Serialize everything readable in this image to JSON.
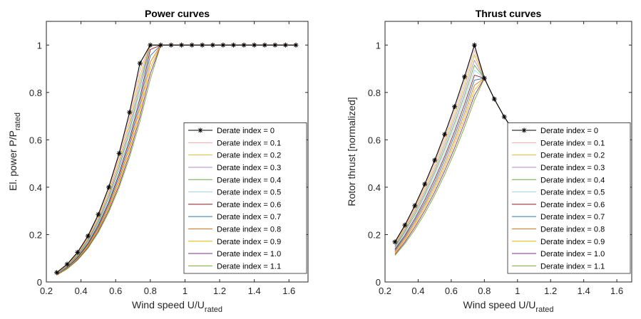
{
  "chart_data": [
    {
      "type": "line",
      "title": "Power curves",
      "xlabel": "Wind speed U/U",
      "xlabel_sub": "rated",
      "ylabel": "El. power P/P",
      "ylabel_sub": "rated",
      "x": [
        0.26,
        0.32,
        0.38,
        0.44,
        0.5,
        0.56,
        0.62,
        0.68,
        0.74,
        0.8,
        0.86,
        0.92,
        0.98,
        1.04,
        1.1,
        1.16,
        1.22,
        1.28,
        1.34,
        1.4,
        1.46,
        1.52,
        1.58,
        1.64
      ],
      "xlim": [
        0.2,
        1.71
      ],
      "ylim": [
        0,
        1.1
      ],
      "xticks": [
        0.2,
        0.4,
        0.6,
        0.8,
        1,
        1.2,
        1.4,
        1.6
      ],
      "yticks": [
        0,
        0.2,
        0.4,
        0.6,
        0.8,
        1
      ],
      "legend": "lower right",
      "series": [
        {
          "name": "Derate index = 0",
          "color": "#000000",
          "marker": "*",
          "values": [
            0.04,
            0.075,
            0.125,
            0.194,
            0.285,
            0.4,
            0.543,
            0.716,
            0.923,
            1,
            1,
            1,
            1,
            1,
            1,
            1,
            1,
            1,
            1,
            1,
            1,
            1,
            1,
            1
          ]
        },
        {
          "name": "Derate index = 0.1",
          "color": "#f4a6a6",
          "values": [
            0.039,
            0.073,
            0.121,
            0.188,
            0.277,
            0.388,
            0.527,
            0.695,
            0.896,
            1,
            1,
            1,
            1,
            1,
            1,
            1,
            1,
            1,
            1,
            1,
            1,
            1,
            1,
            1
          ]
        },
        {
          "name": "Derate index = 0.2",
          "color": "#d4c02c",
          "values": [
            0.038,
            0.071,
            0.118,
            0.183,
            0.269,
            0.377,
            0.512,
            0.675,
            0.87,
            1,
            1,
            1,
            1,
            1,
            1,
            1,
            1,
            1,
            1,
            1,
            1,
            1,
            1,
            1
          ]
        },
        {
          "name": "Derate index = 0.3",
          "color": "#b48ac8",
          "values": [
            0.037,
            0.069,
            0.115,
            0.178,
            0.261,
            0.366,
            0.497,
            0.656,
            0.845,
            1,
            1,
            1,
            1,
            1,
            1,
            1,
            1,
            1,
            1,
            1,
            1,
            1,
            1,
            1
          ]
        },
        {
          "name": "Derate index = 0.4",
          "color": "#6aa84f",
          "values": [
            0.036,
            0.067,
            0.111,
            0.173,
            0.254,
            0.356,
            0.483,
            0.637,
            0.821,
            1,
            1,
            1,
            1,
            1,
            1,
            1,
            1,
            1,
            1,
            1,
            1,
            1,
            1,
            1
          ]
        },
        {
          "name": "Derate index = 0.5",
          "color": "#9fd8ef",
          "values": [
            0.035,
            0.065,
            0.108,
            0.168,
            0.247,
            0.346,
            0.47,
            0.62,
            0.799,
            1,
            1,
            1,
            1,
            1,
            1,
            1,
            1,
            1,
            1,
            1,
            1,
            1,
            1,
            1
          ]
        },
        {
          "name": "Derate index = 0.6",
          "color": "#8b1a1a",
          "values": [
            0.034,
            0.063,
            0.105,
            0.163,
            0.24,
            0.336,
            0.457,
            0.602,
            0.776,
            0.981,
            1,
            1,
            1,
            1,
            1,
            1,
            1,
            1,
            1,
            1,
            1,
            1,
            1,
            1
          ]
        },
        {
          "name": "Derate index = 0.7",
          "color": "#2e75b6",
          "values": [
            0.033,
            0.061,
            0.102,
            0.159,
            0.233,
            0.328,
            0.445,
            0.586,
            0.756,
            0.955,
            1,
            1,
            1,
            1,
            1,
            1,
            1,
            1,
            1,
            1,
            1,
            1,
            1,
            1
          ]
        },
        {
          "name": "Derate index = 0.8",
          "color": "#e8731c",
          "values": [
            0.032,
            0.06,
            0.1,
            0.154,
            0.227,
            0.318,
            0.432,
            0.57,
            0.735,
            0.928,
            1,
            1,
            1,
            1,
            1,
            1,
            1,
            1,
            1,
            1,
            1,
            1,
            1,
            1
          ]
        },
        {
          "name": "Derate index = 0.9",
          "color": "#e6b800",
          "values": [
            0.031,
            0.058,
            0.097,
            0.15,
            0.221,
            0.31,
            0.421,
            0.555,
            0.715,
            0.904,
            1,
            1,
            1,
            1,
            1,
            1,
            1,
            1,
            1,
            1,
            1,
            1,
            1,
            1
          ]
        },
        {
          "name": "Derate index = 1.0",
          "color": "#7e2f8e",
          "values": [
            0.03,
            0.057,
            0.094,
            0.146,
            0.215,
            0.302,
            0.409,
            0.54,
            0.696,
            0.879,
            1,
            1,
            1,
            1,
            1,
            1,
            1,
            1,
            1,
            1,
            1,
            1,
            1,
            1
          ]
        },
        {
          "name": "Derate index = 1.1",
          "color": "#77ac30",
          "values": [
            0.029,
            0.055,
            0.092,
            0.142,
            0.209,
            0.294,
            0.399,
            0.526,
            0.677,
            0.856,
            1,
            1,
            1,
            1,
            1,
            1,
            1,
            1,
            1,
            1,
            1,
            1,
            1,
            1
          ]
        }
      ]
    },
    {
      "type": "line",
      "title": "Thrust curves",
      "xlabel": "Wind speed U/U",
      "xlabel_sub": "rated",
      "ylabel": "Rotor thrust [normalized]",
      "x": [
        0.26,
        0.32,
        0.38,
        0.44,
        0.5,
        0.56,
        0.62,
        0.68,
        0.74,
        0.8,
        0.86,
        0.92,
        0.98,
        1.04,
        1.1,
        1.16,
        1.22,
        1.28,
        1.34,
        1.4,
        1.46,
        1.52,
        1.58,
        1.64
      ],
      "xlim": [
        0.2,
        1.69
      ],
      "ylim": [
        0,
        1.1
      ],
      "xticks": [
        0.2,
        0.4,
        0.6,
        0.8,
        1,
        1.2,
        1.4,
        1.6
      ],
      "yticks": [
        0,
        0.2,
        0.4,
        0.6,
        0.8,
        1
      ],
      "legend": "lower right",
      "series": [
        {
          "name": "Derate index = 0",
          "color": "#000000",
          "marker": "*",
          "values": [
            0.169,
            0.24,
            0.322,
            0.413,
            0.514,
            0.623,
            0.74,
            0.866,
            1,
            0.86,
            0.772,
            0.697,
            0.634,
            0.58,
            0.533,
            0.493,
            0.457,
            0.425,
            0.397,
            0.371,
            0.349,
            0.328,
            0.31,
            0.293
          ]
        },
        {
          "name": "Derate index = 0.1",
          "color": "#f4a6a6",
          "values": [
            0.164,
            0.233,
            0.313,
            0.402,
            0.501,
            0.608,
            0.723,
            0.847,
            0.979,
            0.86,
            0.772,
            0.697,
            0.634,
            0.58,
            0.533,
            0.493,
            0.457,
            0.425,
            0.397,
            0.371,
            0.349,
            0.328,
            0.31,
            0.293
          ]
        },
        {
          "name": "Derate index = 0.2",
          "color": "#d4c02c",
          "values": [
            0.159,
            0.226,
            0.304,
            0.391,
            0.487,
            0.592,
            0.705,
            0.827,
            0.958,
            0.86,
            0.772,
            0.697,
            0.634,
            0.58,
            0.533,
            0.493,
            0.457,
            0.425,
            0.397,
            0.371,
            0.349,
            0.328,
            0.31,
            0.293
          ]
        },
        {
          "name": "Derate index = 0.3",
          "color": "#b48ac8",
          "values": [
            0.153,
            0.219,
            0.295,
            0.379,
            0.474,
            0.577,
            0.688,
            0.808,
            0.936,
            0.86,
            0.772,
            0.697,
            0.634,
            0.58,
            0.533,
            0.493,
            0.457,
            0.425,
            0.397,
            0.371,
            0.349,
            0.328,
            0.31,
            0.293
          ]
        },
        {
          "name": "Derate index = 0.4",
          "color": "#6aa84f",
          "values": [
            0.148,
            0.212,
            0.285,
            0.368,
            0.461,
            0.561,
            0.67,
            0.788,
            0.915,
            0.86,
            0.772,
            0.697,
            0.634,
            0.58,
            0.533,
            0.493,
            0.457,
            0.425,
            0.397,
            0.371,
            0.349,
            0.328,
            0.31,
            0.293
          ]
        },
        {
          "name": "Derate index = 0.5",
          "color": "#9fd8ef",
          "values": [
            0.143,
            0.205,
            0.276,
            0.357,
            0.447,
            0.546,
            0.653,
            0.769,
            0.894,
            0.86,
            0.772,
            0.697,
            0.634,
            0.58,
            0.533,
            0.493,
            0.457,
            0.425,
            0.397,
            0.371,
            0.349,
            0.328,
            0.31,
            0.293
          ]
        },
        {
          "name": "Derate index = 0.6",
          "color": "#8b1a1a",
          "values": [
            0.138,
            0.197,
            0.267,
            0.346,
            0.434,
            0.53,
            0.635,
            0.75,
            0.873,
            0.86,
            0.772,
            0.697,
            0.634,
            0.58,
            0.533,
            0.493,
            0.457,
            0.425,
            0.397,
            0.371,
            0.349,
            0.328,
            0.31,
            0.293
          ]
        },
        {
          "name": "Derate index = 0.7",
          "color": "#2e75b6",
          "values": [
            0.133,
            0.19,
            0.258,
            0.334,
            0.42,
            0.515,
            0.618,
            0.73,
            0.852,
            0.86,
            0.772,
            0.697,
            0.634,
            0.58,
            0.533,
            0.493,
            0.457,
            0.425,
            0.397,
            0.371,
            0.349,
            0.328,
            0.31,
            0.293
          ]
        },
        {
          "name": "Derate index = 0.8",
          "color": "#e8731c",
          "values": [
            0.127,
            0.183,
            0.249,
            0.323,
            0.407,
            0.499,
            0.6,
            0.711,
            0.83,
            0.86,
            0.772,
            0.697,
            0.634,
            0.58,
            0.533,
            0.493,
            0.457,
            0.425,
            0.397,
            0.371,
            0.349,
            0.328,
            0.31,
            0.293
          ]
        },
        {
          "name": "Derate index = 0.9",
          "color": "#e6b800",
          "values": [
            0.122,
            0.176,
            0.24,
            0.312,
            0.394,
            0.484,
            0.583,
            0.691,
            0.809,
            0.86,
            0.772,
            0.697,
            0.634,
            0.58,
            0.533,
            0.493,
            0.457,
            0.425,
            0.397,
            0.371,
            0.349,
            0.328,
            0.31,
            0.293
          ]
        },
        {
          "name": "Derate index = 1.0",
          "color": "#7e2f8e",
          "values": [
            0.117,
            0.169,
            0.231,
            0.301,
            0.38,
            0.469,
            0.565,
            0.672,
            0.788,
            0.86,
            0.772,
            0.697,
            0.634,
            0.58,
            0.533,
            0.493,
            0.457,
            0.425,
            0.397,
            0.371,
            0.349,
            0.328,
            0.31,
            0.293
          ]
        },
        {
          "name": "Derate index = 1.1",
          "color": "#77ac30",
          "values": [
            0.112,
            0.162,
            0.221,
            0.289,
            0.367,
            0.453,
            0.548,
            0.653,
            0.767,
            0.86,
            0.772,
            0.697,
            0.634,
            0.58,
            0.533,
            0.493,
            0.457,
            0.425,
            0.397,
            0.371,
            0.349,
            0.328,
            0.31,
            0.293
          ]
        }
      ]
    }
  ]
}
